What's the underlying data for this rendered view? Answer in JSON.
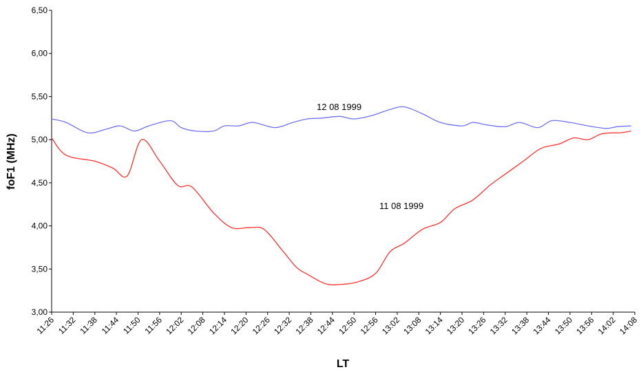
{
  "chart_data": {
    "type": "line",
    "xlabel": "LT",
    "ylabel": "foF1 (MHz)",
    "ylim": [
      3.0,
      6.5
    ],
    "yticks": [
      "3,00",
      "3,50",
      "4,00",
      "4,50",
      "5,00",
      "5,50",
      "6,00",
      "6,50"
    ],
    "ytick_values": [
      3.0,
      3.5,
      4.0,
      4.5,
      5.0,
      5.5,
      6.0,
      6.5
    ],
    "x_categories": [
      "11:26",
      "11:32",
      "11:38",
      "11:44",
      "11:50",
      "11:56",
      "12:02",
      "12:08",
      "12:14",
      "12:20",
      "12:26",
      "12:32",
      "12:38",
      "12:44",
      "12:50",
      "12:56",
      "13:02",
      "13:08",
      "13:14",
      "13:20",
      "13:26",
      "13:32",
      "13:38",
      "13:44",
      "13:50",
      "13:56",
      "14:02",
      "14:08"
    ],
    "grid": false,
    "legend": "none",
    "series": [
      {
        "name": "12 08 1999",
        "color": "#7070ee",
        "values": [
          5.24,
          5.2,
          5.08,
          5.12,
          5.16,
          5.1,
          5.16,
          5.22,
          5.14,
          5.1,
          5.1,
          5.16,
          5.16,
          5.2,
          5.14,
          5.2,
          5.24,
          5.25,
          5.27,
          5.24,
          5.28,
          5.35,
          5.38,
          5.3,
          5.2,
          5.16,
          5.2,
          5.17,
          5.15,
          5.2,
          5.14,
          5.22,
          5.2,
          5.16,
          5.13,
          5.15,
          5.16
        ],
        "x_minutes": [
          0,
          4,
          10,
          15,
          19,
          23,
          27,
          33,
          36,
          40,
          45,
          48,
          52,
          56,
          62,
          67,
          71,
          75,
          80,
          84,
          89,
          94,
          98,
          103,
          108,
          114,
          117,
          121,
          126,
          130,
          135,
          139,
          144,
          149,
          154,
          157,
          161
        ]
      },
      {
        "name": "11 08 1999",
        "color": "#ff3030",
        "values": [
          5.02,
          4.82,
          4.75,
          4.67,
          4.58,
          5.0,
          4.75,
          4.47,
          4.45,
          4.15,
          3.98,
          3.98,
          3.96,
          3.72,
          3.52,
          3.44,
          3.33,
          3.32,
          3.35,
          3.45,
          3.7,
          3.8,
          3.96,
          4.04,
          4.2,
          4.3,
          4.48,
          4.6,
          4.75,
          4.9,
          4.95,
          5.02,
          5.0,
          5.07,
          5.08,
          5.1
        ],
        "x_minutes": [
          0,
          4,
          12,
          17,
          21,
          25,
          30,
          35,
          39,
          45,
          50,
          55,
          59,
          64,
          68,
          71,
          76,
          80,
          85,
          90,
          94,
          98,
          103,
          108,
          112,
          117,
          122,
          126,
          131,
          136,
          141,
          145,
          149,
          153,
          158,
          161
        ]
      }
    ]
  }
}
